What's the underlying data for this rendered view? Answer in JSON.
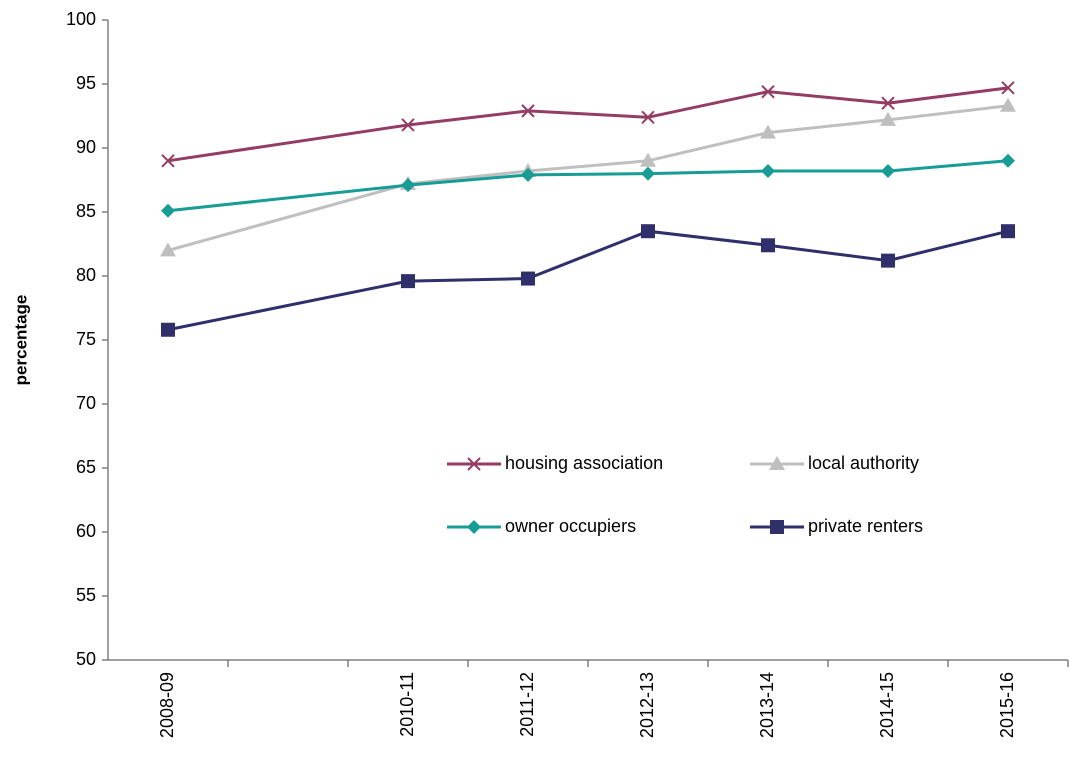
{
  "chart_data": {
    "type": "line",
    "y_label": "percentage",
    "categories": [
      "2008-09",
      null,
      "2010-11",
      "2011-12",
      "2012-13",
      "2013-14",
      "2014-15",
      "2015-16"
    ],
    "series": [
      {
        "name": "housing association",
        "color": "#943c64",
        "marker": "x",
        "values": [
          89.0,
          null,
          91.8,
          92.9,
          92.4,
          94.4,
          93.5,
          94.7
        ]
      },
      {
        "name": "local authority",
        "color": "#bfbfbf",
        "marker": "triangle",
        "values": [
          82.0,
          null,
          87.2,
          88.2,
          89.0,
          91.2,
          92.2,
          93.3
        ]
      },
      {
        "name": "owner occupiers",
        "color": "#179c96",
        "marker": "diamond",
        "values": [
          85.1,
          null,
          87.1,
          87.9,
          88.0,
          88.2,
          88.2,
          89.0
        ]
      },
      {
        "name": "private renters",
        "color": "#2e2f6b",
        "marker": "square",
        "values": [
          75.8,
          null,
          79.6,
          79.8,
          83.5,
          82.4,
          81.2,
          83.5
        ]
      }
    ],
    "span_gaps": true,
    "ylim": [
      50,
      100
    ],
    "yticks": [
      50,
      55,
      60,
      65,
      70,
      75,
      80,
      85,
      90,
      95,
      100
    ]
  }
}
